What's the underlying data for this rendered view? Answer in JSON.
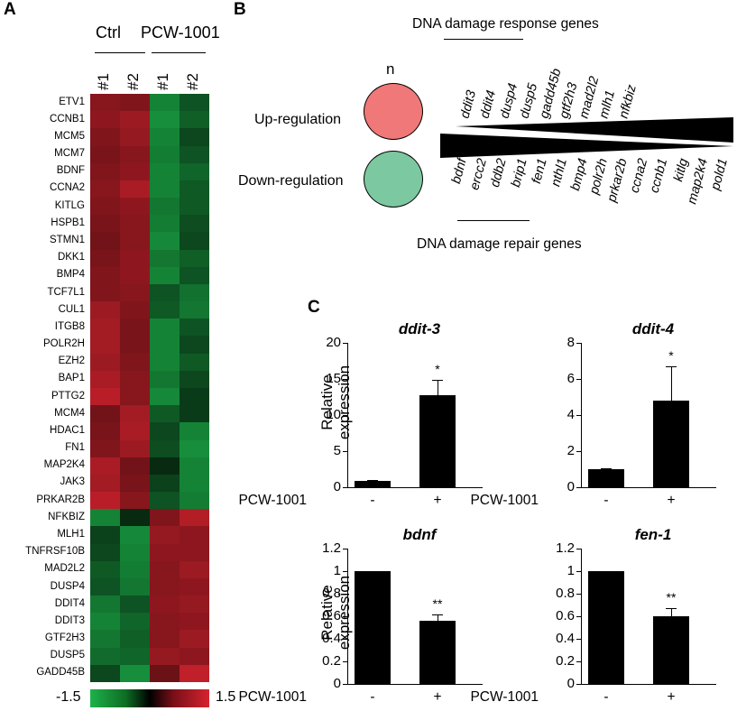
{
  "panels": {
    "a": "A",
    "b": "B",
    "c": "C"
  },
  "heatmap": {
    "group_labels": [
      "Ctrl",
      "PCW-1001"
    ],
    "sample_labels": [
      "#1",
      "#2",
      "#1",
      "#2"
    ],
    "genes": [
      "ETV1",
      "CCNB1",
      "MCM5",
      "MCM7",
      "BDNF",
      "CCNA2",
      "KITLG",
      "HSPB1",
      "STMN1",
      "DKK1",
      "BMP4",
      "TCF7L1",
      "CUL1",
      "ITGB8",
      "POLR2H",
      "EZH2",
      "BAP1",
      "PTTG2",
      "MCM4",
      "HDAC1",
      "FN1",
      "MAP2K4",
      "JAK3",
      "PRKAR2B",
      "NFKBIZ",
      "MLH1",
      "TNFRSF10B",
      "MAD2L2",
      "DUSP4",
      "DDIT4",
      "DDIT3",
      "GTF2H3",
      "DUSP5",
      "GADD45B"
    ],
    "values": [
      [
        0.95,
        0.9,
        -1.1,
        -0.7
      ],
      [
        1.0,
        1.1,
        -1.2,
        -0.8
      ],
      [
        0.9,
        1.05,
        -1.1,
        -0.6
      ],
      [
        0.85,
        0.95,
        -1.05,
        -0.7
      ],
      [
        0.9,
        1.0,
        -1.1,
        -0.85
      ],
      [
        0.95,
        1.2,
        -1.1,
        -0.75
      ],
      [
        0.9,
        1.0,
        -1.0,
        -0.75
      ],
      [
        0.85,
        0.95,
        -1.05,
        -0.65
      ],
      [
        0.8,
        0.95,
        -1.15,
        -0.6
      ],
      [
        0.85,
        1.0,
        -1.0,
        -0.8
      ],
      [
        0.9,
        1.0,
        -1.1,
        -0.7
      ],
      [
        0.9,
        0.95,
        -0.7,
        -0.95
      ],
      [
        1.1,
        0.9,
        -0.75,
        -1.0
      ],
      [
        1.15,
        0.85,
        -1.1,
        -0.7
      ],
      [
        1.15,
        0.85,
        -1.1,
        -0.6
      ],
      [
        1.1,
        0.9,
        -1.1,
        -0.75
      ],
      [
        1.2,
        0.95,
        -1.0,
        -0.6
      ],
      [
        1.3,
        0.95,
        -1.15,
        -0.5
      ],
      [
        0.8,
        1.15,
        -0.75,
        -0.5
      ],
      [
        0.85,
        1.2,
        -0.6,
        -1.1
      ],
      [
        0.9,
        1.1,
        -0.65,
        -1.2
      ],
      [
        1.2,
        0.8,
        -0.35,
        -1.1
      ],
      [
        1.15,
        0.85,
        -0.55,
        -1.1
      ],
      [
        1.3,
        0.95,
        -0.7,
        -1.05
      ],
      [
        -1.1,
        -0.35,
        0.9,
        1.25
      ],
      [
        -0.55,
        -1.15,
        1.05,
        1.0
      ],
      [
        -0.6,
        -1.1,
        1.0,
        1.0
      ],
      [
        -0.75,
        -1.05,
        0.95,
        1.1
      ],
      [
        -0.7,
        -1.0,
        0.95,
        1.0
      ],
      [
        -1.0,
        -0.7,
        1.0,
        1.05
      ],
      [
        -1.1,
        -0.85,
        0.95,
        1.0
      ],
      [
        -1.0,
        -0.8,
        0.95,
        1.1
      ],
      [
        -0.9,
        -0.85,
        1.05,
        1.0
      ],
      [
        -0.6,
        -1.2,
        0.75,
        1.35
      ]
    ],
    "scale_min": "-1.5",
    "scale_max": "1.5",
    "colors": {
      "low": "#1db24a",
      "mid": "#000000",
      "high": "#d5232e"
    }
  },
  "panel_b": {
    "top_title": "DNA damage response genes",
    "bottom_title": "DNA damage repair genes",
    "n_label": "n",
    "up_label": "Up-regulation",
    "down_label": "Down-regulation",
    "up_color": "#f07878",
    "down_color": "#7cc8a0",
    "up_genes": [
      "ddit3",
      "ddit4",
      "dusp4",
      "dusp5",
      "gadd45b",
      "gtf2h3",
      "mad2l2",
      "mlh1",
      "nfkbiz"
    ],
    "down_genes": [
      "bdnf",
      "ercc2",
      "ddb2",
      "brip1",
      "fen1",
      "nthl1",
      "bmp4",
      "polr2h",
      "prkar2b",
      "ccna2",
      "ccnb1",
      "kitlg",
      "map2k4",
      "pold1"
    ]
  },
  "panel_c": {
    "ylabel": [
      "Relative",
      "expression"
    ],
    "xlabel": "PCW-1001",
    "conditions": [
      "-",
      "+"
    ]
  },
  "chart_data": [
    {
      "type": "bar",
      "title": "ddit-3",
      "categories": [
        "-",
        "+"
      ],
      "values": [
        0.9,
        12.8
      ],
      "errors": [
        0.1,
        2.1
      ],
      "significance": [
        "",
        "*"
      ],
      "ylim": [
        0,
        20
      ],
      "yticks": [
        "0",
        "5",
        "10",
        "15",
        "20"
      ],
      "xlabel": "PCW-1001",
      "ylabel": "Relative expression"
    },
    {
      "type": "bar",
      "title": "ddit-4",
      "categories": [
        "-",
        "+"
      ],
      "values": [
        1.0,
        4.8
      ],
      "errors": [
        0.05,
        1.9
      ],
      "significance": [
        "",
        "*"
      ],
      "ylim": [
        0,
        8
      ],
      "yticks": [
        "0",
        "2",
        "4",
        "6",
        "8"
      ],
      "xlabel": "PCW-1001",
      "ylabel": ""
    },
    {
      "type": "bar",
      "title": "bdnf",
      "categories": [
        "-",
        "+"
      ],
      "values": [
        1.0,
        0.56
      ],
      "errors": [
        0.0,
        0.06
      ],
      "significance": [
        "",
        "**"
      ],
      "ylim": [
        0,
        1.2
      ],
      "yticks": [
        "0",
        "0.2",
        "0.4",
        "0.6",
        "0.8",
        "1",
        "1.2"
      ],
      "xlabel": "PCW-1001",
      "ylabel": "Relative expression"
    },
    {
      "type": "bar",
      "title": "fen-1",
      "categories": [
        "-",
        "+"
      ],
      "values": [
        1.0,
        0.6
      ],
      "errors": [
        0.0,
        0.07
      ],
      "significance": [
        "",
        "**"
      ],
      "ylim": [
        0,
        1.2
      ],
      "yticks": [
        "0",
        "0.2",
        "0.4",
        "0.6",
        "0.8",
        "1",
        "1.2"
      ],
      "xlabel": "PCW-1001",
      "ylabel": ""
    }
  ]
}
